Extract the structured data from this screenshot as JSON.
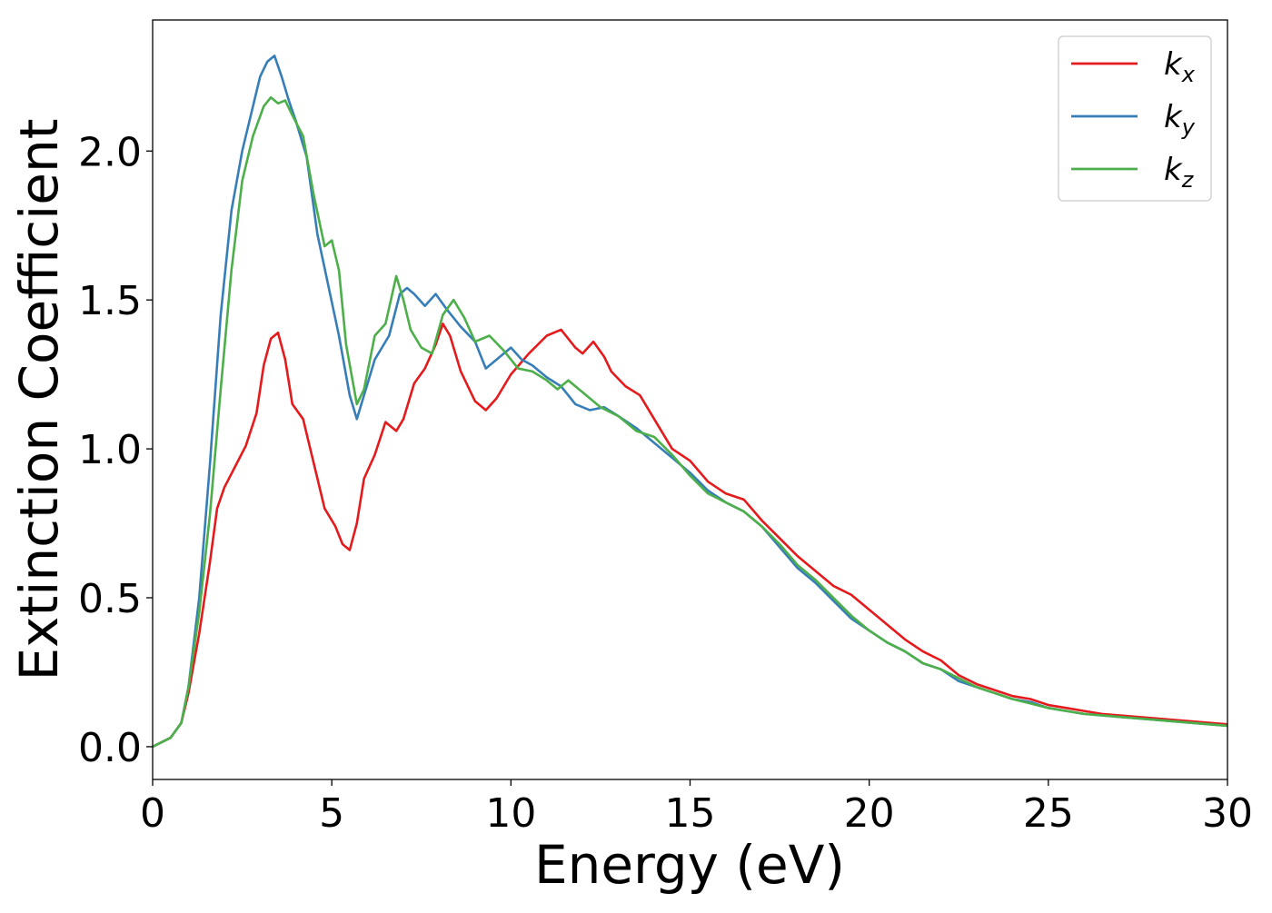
{
  "chart_data": {
    "type": "line",
    "xlabel": "Energy (eV)",
    "ylabel": "Extinction Coefficient",
    "xlim": [
      0,
      30
    ],
    "ylim": [
      -0.11,
      2.44
    ],
    "x_ticks": [
      0,
      5,
      10,
      15,
      20,
      25,
      30
    ],
    "x_tick_labels": [
      "0",
      "5",
      "10",
      "15",
      "20",
      "25",
      "30"
    ],
    "y_ticks": [
      0.0,
      0.5,
      1.0,
      1.5,
      2.0
    ],
    "y_tick_labels": [
      "0.0",
      "0.5",
      "1.0",
      "1.5",
      "2.0"
    ],
    "grid": false,
    "legend_position": "top-right",
    "series": [
      {
        "name": "k",
        "subscript": "x",
        "color": "#e41a1c",
        "points": [
          [
            0,
            0
          ],
          [
            0.5,
            0.03
          ],
          [
            0.8,
            0.08
          ],
          [
            1.0,
            0.18
          ],
          [
            1.3,
            0.38
          ],
          [
            1.6,
            0.62
          ],
          [
            1.8,
            0.8
          ],
          [
            2.0,
            0.87
          ],
          [
            2.3,
            0.94
          ],
          [
            2.6,
            1.01
          ],
          [
            2.9,
            1.12
          ],
          [
            3.1,
            1.28
          ],
          [
            3.3,
            1.37
          ],
          [
            3.5,
            1.39
          ],
          [
            3.7,
            1.3
          ],
          [
            3.9,
            1.15
          ],
          [
            4.2,
            1.1
          ],
          [
            4.5,
            0.95
          ],
          [
            4.8,
            0.8
          ],
          [
            5.1,
            0.74
          ],
          [
            5.3,
            0.68
          ],
          [
            5.5,
            0.66
          ],
          [
            5.7,
            0.75
          ],
          [
            5.9,
            0.9
          ],
          [
            6.2,
            0.98
          ],
          [
            6.5,
            1.09
          ],
          [
            6.8,
            1.06
          ],
          [
            7.0,
            1.1
          ],
          [
            7.3,
            1.22
          ],
          [
            7.6,
            1.27
          ],
          [
            7.9,
            1.35
          ],
          [
            8.1,
            1.42
          ],
          [
            8.3,
            1.38
          ],
          [
            8.6,
            1.26
          ],
          [
            9.0,
            1.16
          ],
          [
            9.3,
            1.13
          ],
          [
            9.6,
            1.17
          ],
          [
            10.0,
            1.25
          ],
          [
            10.5,
            1.32
          ],
          [
            11.0,
            1.38
          ],
          [
            11.4,
            1.4
          ],
          [
            11.8,
            1.34
          ],
          [
            12.0,
            1.32
          ],
          [
            12.3,
            1.36
          ],
          [
            12.6,
            1.31
          ],
          [
            12.8,
            1.26
          ],
          [
            13.2,
            1.21
          ],
          [
            13.6,
            1.18
          ],
          [
            14.0,
            1.1
          ],
          [
            14.5,
            1.0
          ],
          [
            15.0,
            0.96
          ],
          [
            15.5,
            0.89
          ],
          [
            16.0,
            0.85
          ],
          [
            16.5,
            0.83
          ],
          [
            17.0,
            0.76
          ],
          [
            17.5,
            0.7
          ],
          [
            18.0,
            0.64
          ],
          [
            18.5,
            0.59
          ],
          [
            19.0,
            0.54
          ],
          [
            19.5,
            0.51
          ],
          [
            20.0,
            0.46
          ],
          [
            20.5,
            0.41
          ],
          [
            21.0,
            0.36
          ],
          [
            21.5,
            0.32
          ],
          [
            22.0,
            0.29
          ],
          [
            22.5,
            0.24
          ],
          [
            23.0,
            0.21
          ],
          [
            23.5,
            0.19
          ],
          [
            24.0,
            0.17
          ],
          [
            24.5,
            0.16
          ],
          [
            25.0,
            0.14
          ],
          [
            25.5,
            0.13
          ],
          [
            26.0,
            0.12
          ],
          [
            26.5,
            0.11
          ],
          [
            27.0,
            0.105
          ],
          [
            28.0,
            0.095
          ],
          [
            29.0,
            0.085
          ],
          [
            30.0,
            0.075
          ]
        ]
      },
      {
        "name": "k",
        "subscript": "y",
        "color": "#377eb8",
        "points": [
          [
            0,
            0
          ],
          [
            0.5,
            0.03
          ],
          [
            0.8,
            0.08
          ],
          [
            1.0,
            0.2
          ],
          [
            1.3,
            0.5
          ],
          [
            1.6,
            0.95
          ],
          [
            1.9,
            1.45
          ],
          [
            2.2,
            1.8
          ],
          [
            2.5,
            2.0
          ],
          [
            2.8,
            2.15
          ],
          [
            3.0,
            2.25
          ],
          [
            3.2,
            2.3
          ],
          [
            3.4,
            2.32
          ],
          [
            3.6,
            2.25
          ],
          [
            3.8,
            2.17
          ],
          [
            4.0,
            2.1
          ],
          [
            4.3,
            1.98
          ],
          [
            4.6,
            1.72
          ],
          [
            4.9,
            1.55
          ],
          [
            5.2,
            1.38
          ],
          [
            5.5,
            1.18
          ],
          [
            5.7,
            1.1
          ],
          [
            5.9,
            1.18
          ],
          [
            6.2,
            1.3
          ],
          [
            6.6,
            1.38
          ],
          [
            6.9,
            1.52
          ],
          [
            7.1,
            1.54
          ],
          [
            7.3,
            1.52
          ],
          [
            7.6,
            1.48
          ],
          [
            7.9,
            1.52
          ],
          [
            8.2,
            1.47
          ],
          [
            8.6,
            1.41
          ],
          [
            9.0,
            1.36
          ],
          [
            9.3,
            1.27
          ],
          [
            9.6,
            1.3
          ],
          [
            10.0,
            1.34
          ],
          [
            10.3,
            1.3
          ],
          [
            10.6,
            1.28
          ],
          [
            11.0,
            1.24
          ],
          [
            11.4,
            1.21
          ],
          [
            11.8,
            1.15
          ],
          [
            12.2,
            1.13
          ],
          [
            12.6,
            1.14
          ],
          [
            13.0,
            1.11
          ],
          [
            13.5,
            1.07
          ],
          [
            14.0,
            1.02
          ],
          [
            14.5,
            0.97
          ],
          [
            15.0,
            0.92
          ],
          [
            15.5,
            0.86
          ],
          [
            16.0,
            0.82
          ],
          [
            16.5,
            0.79
          ],
          [
            17.0,
            0.74
          ],
          [
            17.5,
            0.67
          ],
          [
            18.0,
            0.6
          ],
          [
            18.5,
            0.55
          ],
          [
            19.0,
            0.49
          ],
          [
            19.5,
            0.43
          ],
          [
            20.0,
            0.39
          ],
          [
            20.5,
            0.35
          ],
          [
            21.0,
            0.32
          ],
          [
            21.5,
            0.28
          ],
          [
            22.0,
            0.26
          ],
          [
            22.5,
            0.22
          ],
          [
            23.0,
            0.2
          ],
          [
            23.5,
            0.18
          ],
          [
            24.0,
            0.16
          ],
          [
            24.5,
            0.15
          ],
          [
            25.0,
            0.13
          ],
          [
            25.5,
            0.12
          ],
          [
            26.0,
            0.11
          ],
          [
            27.0,
            0.1
          ],
          [
            28.0,
            0.09
          ],
          [
            29.0,
            0.08
          ],
          [
            30.0,
            0.07
          ]
        ]
      },
      {
        "name": "k",
        "subscript": "z",
        "color": "#4daf4a",
        "points": [
          [
            0,
            0
          ],
          [
            0.5,
            0.03
          ],
          [
            0.8,
            0.08
          ],
          [
            1.0,
            0.2
          ],
          [
            1.3,
            0.45
          ],
          [
            1.6,
            0.78
          ],
          [
            1.9,
            1.2
          ],
          [
            2.2,
            1.6
          ],
          [
            2.5,
            1.9
          ],
          [
            2.8,
            2.05
          ],
          [
            3.1,
            2.15
          ],
          [
            3.3,
            2.18
          ],
          [
            3.5,
            2.16
          ],
          [
            3.7,
            2.17
          ],
          [
            3.9,
            2.12
          ],
          [
            4.2,
            2.05
          ],
          [
            4.5,
            1.85
          ],
          [
            4.8,
            1.68
          ],
          [
            5.0,
            1.7
          ],
          [
            5.2,
            1.6
          ],
          [
            5.4,
            1.35
          ],
          [
            5.7,
            1.15
          ],
          [
            5.9,
            1.2
          ],
          [
            6.2,
            1.38
          ],
          [
            6.5,
            1.42
          ],
          [
            6.8,
            1.58
          ],
          [
            7.0,
            1.5
          ],
          [
            7.2,
            1.4
          ],
          [
            7.5,
            1.34
          ],
          [
            7.8,
            1.32
          ],
          [
            8.1,
            1.45
          ],
          [
            8.4,
            1.5
          ],
          [
            8.7,
            1.44
          ],
          [
            9.0,
            1.36
          ],
          [
            9.4,
            1.38
          ],
          [
            9.8,
            1.33
          ],
          [
            10.2,
            1.27
          ],
          [
            10.6,
            1.26
          ],
          [
            11.0,
            1.23
          ],
          [
            11.3,
            1.2
          ],
          [
            11.6,
            1.23
          ],
          [
            12.0,
            1.19
          ],
          [
            12.5,
            1.14
          ],
          [
            13.0,
            1.11
          ],
          [
            13.5,
            1.06
          ],
          [
            14.0,
            1.04
          ],
          [
            14.5,
            0.98
          ],
          [
            15.0,
            0.91
          ],
          [
            15.5,
            0.85
          ],
          [
            16.0,
            0.82
          ],
          [
            16.5,
            0.79
          ],
          [
            17.0,
            0.74
          ],
          [
            17.5,
            0.68
          ],
          [
            18.0,
            0.61
          ],
          [
            18.5,
            0.56
          ],
          [
            19.0,
            0.5
          ],
          [
            19.5,
            0.44
          ],
          [
            20.0,
            0.39
          ],
          [
            20.5,
            0.35
          ],
          [
            21.0,
            0.32
          ],
          [
            21.5,
            0.28
          ],
          [
            22.0,
            0.26
          ],
          [
            22.5,
            0.23
          ],
          [
            23.0,
            0.2
          ],
          [
            23.5,
            0.18
          ],
          [
            24.0,
            0.16
          ],
          [
            24.5,
            0.145
          ],
          [
            25.0,
            0.13
          ],
          [
            25.5,
            0.12
          ],
          [
            26.0,
            0.11
          ],
          [
            27.0,
            0.1
          ],
          [
            28.0,
            0.09
          ],
          [
            29.0,
            0.08
          ],
          [
            30.0,
            0.07
          ]
        ]
      }
    ]
  }
}
